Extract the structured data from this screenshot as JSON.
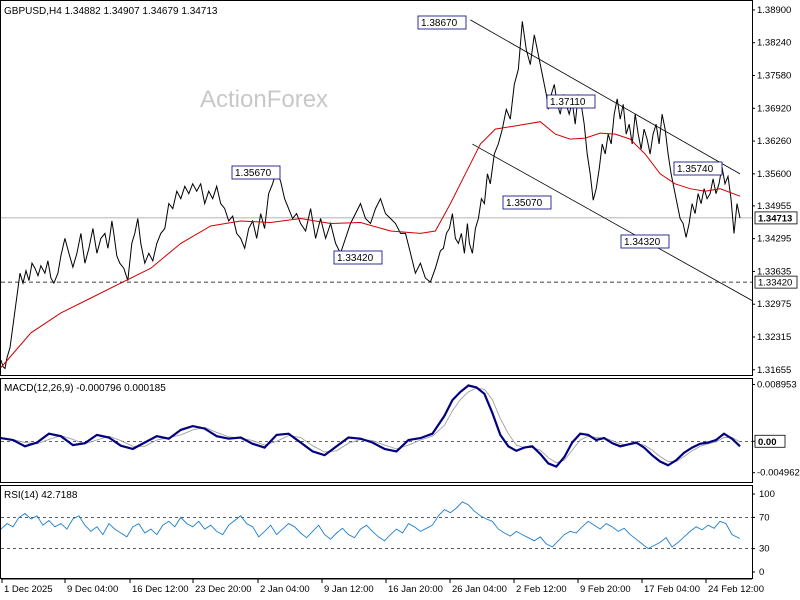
{
  "chart_data": {
    "type": "line",
    "symbol_header": "GBPUSD,H4  1.34882 1.34907 1.34679 1.34713",
    "watermark": "ActionForex",
    "x_labels": [
      "1 Dec 2025",
      "9 Dec 04:00",
      "16 Dec 12:00",
      "23 Dec 20:00",
      "2 Jan 04:00",
      "9 Jan 12:00",
      "16 Jan 20:00",
      "26 Jan 04:00",
      "2 Feb 12:00",
      "9 Feb 20:00",
      "17 Feb 04:00",
      "24 Feb 12:00"
    ],
    "price_axis": {
      "ylim": [
        1.3155,
        1.3908
      ],
      "ticks": [
        "1.38900",
        "1.38240",
        "1.37580",
        "1.36920",
        "1.36260",
        "1.35600",
        "1.34955",
        "1.34295",
        "1.33635",
        "1.32975",
        "1.32315",
        "1.31655"
      ],
      "current_price": "1.34713",
      "support_level": "1.33420"
    },
    "price_series": {
      "name": "",
      "x": [
        0,
        2,
        4,
        6,
        9,
        11,
        14,
        17,
        19,
        22,
        25,
        28,
        31,
        34,
        37,
        40,
        44,
        47,
        50,
        53,
        57,
        60,
        64,
        68,
        72,
        76,
        80,
        84,
        88,
        92,
        96,
        100,
        104,
        107,
        109,
        111,
        113,
        116,
        119,
        123,
        127,
        131,
        134,
        137,
        140,
        144,
        148,
        152,
        156,
        160,
        164,
        168,
        172,
        176,
        180,
        184,
        188,
        192,
        196,
        200,
        204,
        208,
        212,
        216,
        220,
        224,
        228,
        232,
        236,
        240,
        244,
        248,
        252,
        256,
        260,
        264,
        268,
        272,
        276,
        280,
        284,
        288,
        292,
        296,
        300,
        305,
        310,
        315,
        320,
        325,
        330,
        335,
        340,
        345,
        350,
        355,
        360,
        365,
        370,
        375,
        380,
        385,
        390,
        395,
        400,
        405,
        410,
        415,
        420,
        425,
        430,
        435,
        440,
        443,
        446,
        449,
        452,
        455,
        458,
        461,
        464,
        467,
        469,
        472,
        475,
        478,
        481,
        484,
        487,
        490,
        494,
        498,
        502,
        506,
        510,
        514,
        518,
        522,
        526,
        530,
        534,
        538,
        542,
        546,
        548,
        551,
        554,
        557,
        560,
        563,
        566,
        569,
        572,
        575,
        578,
        581,
        584,
        587,
        590,
        593,
        596,
        599,
        602,
        605,
        608,
        611,
        614,
        617,
        620,
        623,
        626,
        629,
        632,
        635,
        638,
        641,
        644,
        647,
        650,
        653,
        656,
        659,
        662,
        665,
        668,
        671,
        674,
        677,
        680,
        683,
        686,
        689,
        692,
        695,
        698,
        701,
        704,
        707,
        710,
        713,
        716,
        719,
        722,
        725,
        728,
        731,
        734,
        737,
        740
      ],
      "values": [
        1.3185,
        1.3172,
        1.3168,
        1.319,
        1.321,
        1.324,
        1.3285,
        1.333,
        1.336,
        1.334,
        1.3365,
        1.3345,
        1.338,
        1.337,
        1.3355,
        1.3375,
        1.336,
        1.3385,
        1.335,
        1.334,
        1.336,
        1.3395,
        1.343,
        1.34,
        1.3372,
        1.34,
        1.344,
        1.338,
        1.341,
        1.345,
        1.34,
        1.343,
        1.344,
        1.341,
        1.3435,
        1.3465,
        1.344,
        1.3395,
        1.338,
        1.337,
        1.3345,
        1.342,
        1.344,
        1.347,
        1.342,
        1.338,
        1.34,
        1.3385,
        1.342,
        1.344,
        1.345,
        1.35,
        1.349,
        1.3525,
        1.351,
        1.3535,
        1.352,
        1.354,
        1.3525,
        1.354,
        1.35,
        1.3525,
        1.351,
        1.3535,
        1.35,
        1.349,
        1.3465,
        1.3475,
        1.344,
        1.343,
        1.341,
        1.345,
        1.3465,
        1.343,
        1.348,
        1.345,
        1.352,
        1.354,
        1.3567,
        1.3545,
        1.351,
        1.349,
        1.347,
        1.348,
        1.346,
        1.3445,
        1.349,
        1.343,
        1.347,
        1.343,
        1.346,
        1.342,
        1.34,
        1.343,
        1.346,
        1.348,
        1.35,
        1.347,
        1.346,
        1.349,
        1.351,
        1.348,
        1.347,
        1.346,
        1.344,
        1.344,
        1.34,
        1.336,
        1.338,
        1.335,
        1.3342,
        1.337,
        1.3405,
        1.341,
        1.344,
        1.345,
        1.348,
        1.343,
        1.342,
        1.344,
        1.34,
        1.346,
        1.342,
        1.34,
        1.345,
        1.347,
        1.351,
        1.35,
        1.356,
        1.354,
        1.36,
        1.362,
        1.365,
        1.369,
        1.367,
        1.374,
        1.377,
        1.3867,
        1.381,
        1.378,
        1.384,
        1.38,
        1.376,
        1.372,
        1.369,
        1.372,
        1.374,
        1.37,
        1.368,
        1.372,
        1.37,
        1.368,
        1.3705,
        1.366,
        1.372,
        1.37,
        1.366,
        1.36,
        1.356,
        1.3507,
        1.353,
        1.357,
        1.362,
        1.36,
        1.364,
        1.362,
        1.368,
        1.3711,
        1.367,
        1.37,
        1.364,
        1.366,
        1.362,
        1.368,
        1.364,
        1.361,
        1.365,
        1.363,
        1.36,
        1.364,
        1.366,
        1.362,
        1.368,
        1.365,
        1.36,
        1.356,
        1.353,
        1.35,
        1.347,
        1.346,
        1.3432,
        1.346,
        1.35,
        1.348,
        1.352,
        1.35,
        1.353,
        1.351,
        1.352,
        1.355,
        1.352,
        1.354,
        1.3574,
        1.354,
        1.3555,
        1.351,
        1.344,
        1.35,
        1.3471
      ]
    },
    "ma_series": {
      "name": "",
      "x": [
        0,
        30,
        60,
        90,
        120,
        150,
        180,
        210,
        240,
        270,
        300,
        330,
        360,
        390,
        420,
        435,
        450,
        465,
        480,
        495,
        510,
        525,
        540,
        555,
        570,
        585,
        600,
        615,
        630,
        645,
        660,
        675,
        690,
        705,
        720,
        740
      ],
      "values": [
        1.317,
        1.324,
        1.328,
        1.331,
        1.334,
        1.337,
        1.342,
        1.3455,
        1.3465,
        1.3462,
        1.347,
        1.346,
        1.3462,
        1.3445,
        1.344,
        1.3445,
        1.35,
        1.356,
        1.362,
        1.365,
        1.3655,
        1.366,
        1.3665,
        1.364,
        1.363,
        1.3632,
        1.3642,
        1.364,
        1.363,
        1.36,
        1.356,
        1.354,
        1.353,
        1.3525,
        1.353,
        1.3515
      ]
    },
    "channel": {
      "upper": {
        "x": [
          470,
          740
        ],
        "values": [
          1.387,
          1.356
        ]
      },
      "lower": {
        "x": [
          472,
          752
        ],
        "values": [
          1.362,
          1.3305
        ]
      }
    },
    "annotations": [
      {
        "text": "1.38670"
      },
      {
        "text": "1.37110"
      },
      {
        "text": "1.35670"
      },
      {
        "text": "1.35740"
      },
      {
        "text": "1.35070"
      },
      {
        "text": "1.34320"
      },
      {
        "text": "1.33420"
      }
    ],
    "macd": {
      "header": "MACD(12,26,9) -0.000796 0.000185",
      "ylim": [
        -0.0058,
        0.0092
      ],
      "ticks": [
        "0.008953",
        "0.00",
        "-0.004962"
      ],
      "current_value": "0.00",
      "x": [
        0,
        12,
        24,
        36,
        48,
        60,
        72,
        84,
        96,
        108,
        120,
        132,
        144,
        156,
        168,
        180,
        192,
        204,
        216,
        228,
        240,
        252,
        264,
        276,
        288,
        300,
        312,
        324,
        336,
        348,
        360,
        372,
        384,
        396,
        408,
        420,
        432,
        444,
        452,
        460,
        468,
        476,
        484,
        492,
        500,
        508,
        516,
        524,
        532,
        540,
        548,
        556,
        564,
        572,
        580,
        588,
        596,
        604,
        612,
        620,
        628,
        636,
        644,
        652,
        660,
        668,
        676,
        684,
        692,
        700,
        708,
        716,
        724,
        732,
        740
      ],
      "macd_values": [
        0.0005,
        0.0002,
        -0.0008,
        -0.0002,
        0.0012,
        0.0008,
        -0.0006,
        -0.0003,
        0.001,
        0.0006,
        -0.0007,
        -0.0012,
        -0.0002,
        0.0008,
        0.0004,
        0.0018,
        0.0024,
        0.002,
        0.0008,
        0.0004,
        0.0006,
        -0.0004,
        -0.001,
        0.001,
        0.0012,
        -0.0002,
        -0.0016,
        -0.0022,
        -0.0008,
        0.0006,
        0.0004,
        -0.0002,
        -0.0012,
        -0.0016,
        0.0002,
        0.0005,
        0.0012,
        0.004,
        0.0065,
        0.0078,
        0.0088,
        0.0085,
        0.0075,
        0.0045,
        0.001,
        -0.0008,
        -0.0015,
        -0.001,
        -0.0008,
        -0.002,
        -0.0035,
        -0.004,
        -0.0025,
        -0.0002,
        0.0012,
        0.001,
        0.0002,
        0.0005,
        -0.0003,
        -0.0008,
        -0.0005,
        -0.0002,
        -0.001,
        -0.0022,
        -0.0032,
        -0.0038,
        -0.003,
        -0.0018,
        -0.001,
        -0.0004,
        -0.0002,
        0.0002,
        0.0012,
        0.0004,
        -0.0008
      ],
      "signal_values": [
        0.0004,
        0.0003,
        -0.0002,
        -0.0004,
        0.0003,
        0.0009,
        0.0003,
        -0.0004,
        0.0002,
        0.0008,
        0.0001,
        -0.0008,
        -0.0008,
        0.0002,
        0.0006,
        0.001,
        0.0018,
        0.0022,
        0.0014,
        0.0007,
        0.0005,
        0.0001,
        -0.0006,
        0.0,
        0.0009,
        0.0006,
        -0.0007,
        -0.0017,
        -0.0015,
        -0.0003,
        0.0003,
        0.0001,
        -0.0006,
        -0.0012,
        -0.0006,
        0.0002,
        0.0008,
        0.0025,
        0.0048,
        0.0066,
        0.0078,
        0.0084,
        0.0082,
        0.0066,
        0.0036,
        0.0012,
        -0.0006,
        -0.001,
        -0.001,
        -0.0014,
        -0.0026,
        -0.0034,
        -0.003,
        -0.0014,
        0.0002,
        0.0008,
        0.0006,
        0.0005,
        0.0001,
        -0.0004,
        -0.0006,
        -0.0004,
        -0.0006,
        -0.0014,
        -0.0024,
        -0.0032,
        -0.0032,
        -0.0024,
        -0.0015,
        -0.0008,
        -0.0004,
        -0.0001,
        0.0006,
        0.0006,
        -0.0001
      ]
    },
    "rsi": {
      "header": "RSI(14) 42.7188",
      "ylim": [
        0,
        100
      ],
      "ticks": [
        "100",
        "70",
        "30",
        "0"
      ],
      "levels": [
        70,
        30
      ],
      "x": [
        0,
        6,
        12,
        18,
        24,
        30,
        36,
        42,
        48,
        54,
        60,
        66,
        72,
        78,
        84,
        90,
        96,
        102,
        108,
        114,
        120,
        126,
        132,
        138,
        144,
        150,
        156,
        162,
        168,
        174,
        180,
        186,
        192,
        198,
        204,
        210,
        216,
        222,
        228,
        234,
        240,
        246,
        252,
        258,
        264,
        270,
        276,
        282,
        288,
        294,
        300,
        306,
        312,
        318,
        324,
        330,
        336,
        342,
        348,
        354,
        360,
        366,
        372,
        378,
        384,
        390,
        396,
        402,
        408,
        414,
        420,
        426,
        432,
        438,
        444,
        450,
        456,
        462,
        468,
        474,
        480,
        486,
        492,
        498,
        504,
        510,
        516,
        522,
        528,
        534,
        540,
        546,
        552,
        558,
        564,
        570,
        576,
        582,
        588,
        594,
        600,
        606,
        612,
        618,
        624,
        630,
        636,
        642,
        648,
        654,
        660,
        666,
        672,
        678,
        684,
        690,
        696,
        702,
        708,
        714,
        720,
        726,
        732,
        740
      ],
      "values": [
        55,
        62,
        58,
        70,
        75,
        68,
        72,
        60,
        66,
        58,
        62,
        55,
        68,
        72,
        60,
        52,
        58,
        48,
        62,
        55,
        50,
        45,
        58,
        62,
        50,
        55,
        48,
        60,
        65,
        58,
        70,
        62,
        58,
        65,
        55,
        60,
        52,
        48,
        60,
        66,
        72,
        62,
        58,
        45,
        52,
        60,
        48,
        55,
        62,
        58,
        50,
        44,
        52,
        60,
        48,
        42,
        50,
        56,
        48,
        44,
        55,
        60,
        52,
        45,
        40,
        48,
        55,
        50,
        62,
        58,
        52,
        56,
        60,
        72,
        80,
        76,
        82,
        90,
        86,
        78,
        72,
        68,
        65,
        55,
        50,
        46,
        52,
        48,
        44,
        40,
        45,
        36,
        32,
        40,
        48,
        52,
        50,
        58,
        65,
        60,
        55,
        62,
        58,
        52,
        56,
        48,
        42,
        36,
        30,
        34,
        38,
        44,
        32,
        38,
        45,
        52,
        58,
        54,
        60,
        56,
        65,
        62,
        48,
        43
      ]
    },
    "xlabel": "",
    "ylabel": ""
  }
}
